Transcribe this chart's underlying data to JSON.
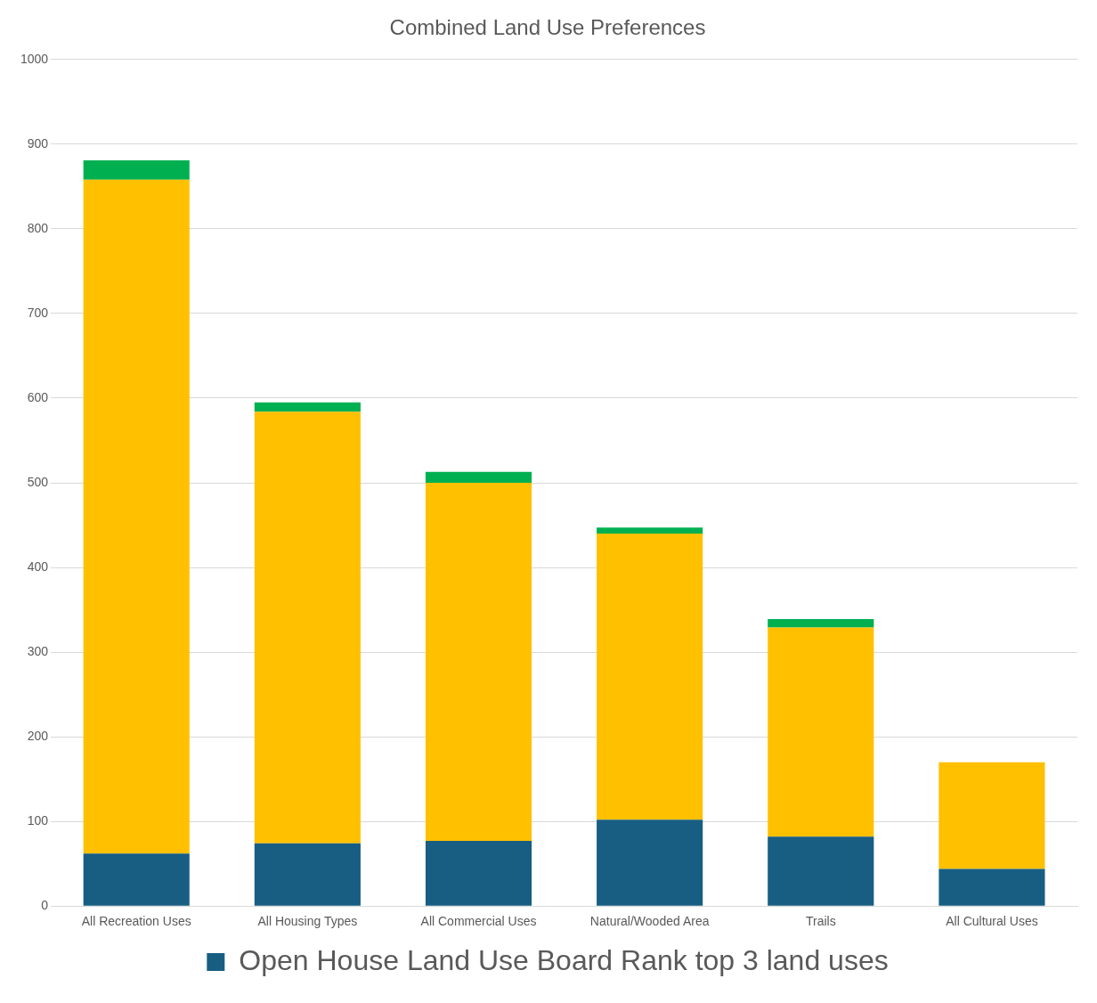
{
  "chart_data": {
    "type": "bar",
    "title": "Combined Land Use Preferences",
    "categories": [
      "All Recreation Uses",
      "All Housing Types",
      "All Commercial Uses",
      "Natural/Wooded Area",
      "Trails",
      "All Cultural Uses"
    ],
    "series": [
      {
        "name": "Open House Land Use Board Rank top 3 land uses",
        "color": "#175e82",
        "values": [
          62,
          74,
          77,
          102,
          82,
          44
        ]
      },
      {
        "color": "#ffc000",
        "values": [
          796,
          510,
          423,
          338,
          247,
          126
        ]
      },
      {
        "color": "#00b050",
        "values": [
          23,
          11,
          13,
          7,
          10,
          0
        ]
      }
    ],
    "stacked": true,
    "ylim": [
      0,
      1000
    ],
    "yticks": [
      0,
      100,
      200,
      300,
      400,
      500,
      600,
      700,
      800,
      900,
      1000
    ],
    "grid": "y",
    "legend": "bottom"
  }
}
